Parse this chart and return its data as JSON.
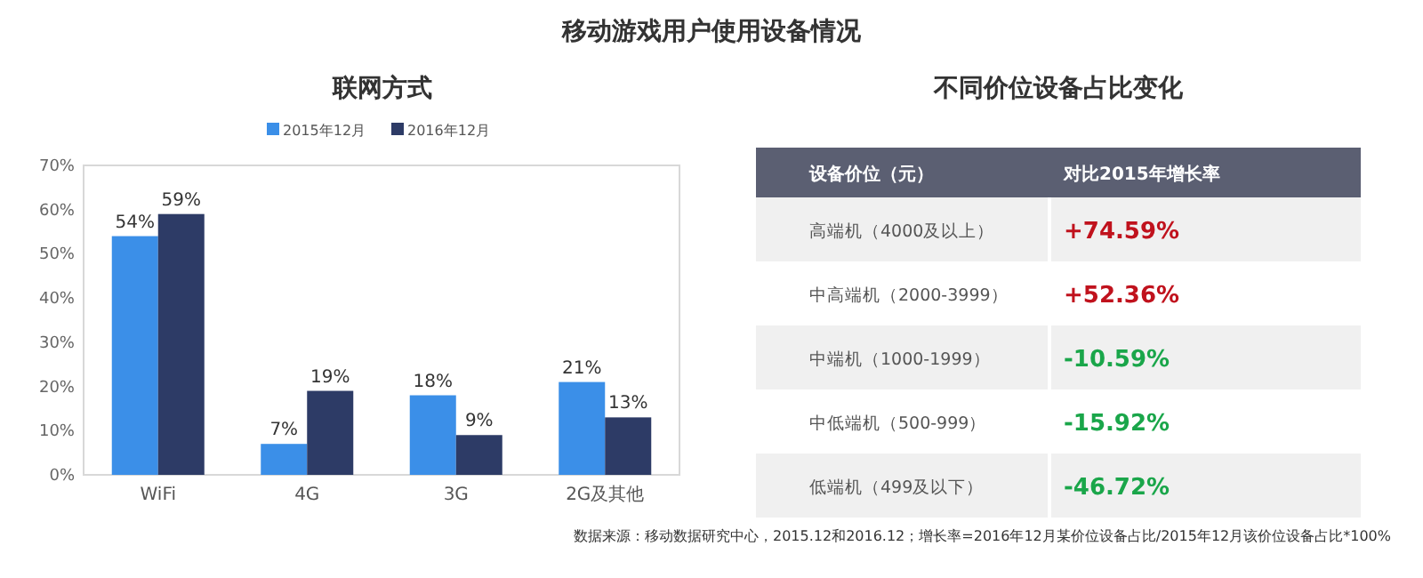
{
  "chart_data": [
    {
      "type": "bar",
      "title": "联网方式",
      "categories": [
        "WiFi",
        "4G",
        "3G",
        "2G及其他"
      ],
      "series": [
        {
          "name": "2015年12月",
          "color": "#3b8fe8",
          "values": [
            54,
            7,
            18,
            21
          ],
          "value_labels": [
            "54%",
            "7%",
            "18%",
            "21%"
          ]
        },
        {
          "name": "2016年12月",
          "color": "#2d3b66",
          "values": [
            59,
            19,
            9,
            13
          ],
          "value_labels": [
            "59%",
            "19%",
            "9%",
            "13%"
          ]
        }
      ],
      "ylim": [
        0,
        70
      ],
      "yticks": [
        {
          "value": 0,
          "label": "0%"
        },
        {
          "value": 10,
          "label": "10%"
        },
        {
          "value": 20,
          "label": "20%"
        },
        {
          "value": 30,
          "label": "30%"
        },
        {
          "value": 40,
          "label": "40%"
        },
        {
          "value": 50,
          "label": "50%"
        },
        {
          "value": 60,
          "label": "60%"
        },
        {
          "value": 70,
          "label": "70%"
        }
      ],
      "legend": "top",
      "annotations": [
        "移动游戏用户使用设备情况"
      ]
    },
    {
      "type": "other",
      "title": "不同价位设备占比变化",
      "categories": [
        "高端机（4000及以上）",
        "中高端机（2000-3999）",
        "中端机（1000-1999）",
        "中低端机（500-999）",
        "低端机（499及以下）"
      ],
      "value_labels": [
        "+74.59%",
        "+52.36%",
        "-10.59%",
        "-15.92%",
        "-46.72%"
      ],
      "colors": [
        "#c0121d",
        "#c0121d",
        "#1aa64a",
        "#1aa64a",
        "#1aa64a"
      ],
      "xlabel": "设备价位（元）",
      "ylabel": "对比2015年增长率",
      "annotations": [
        "数据来源：移动数据研究中心，2015.12和2016.12；增长率=2016年12月某价位设备占比/2015年12月该价位设备占比*100%"
      ]
    }
  ]
}
